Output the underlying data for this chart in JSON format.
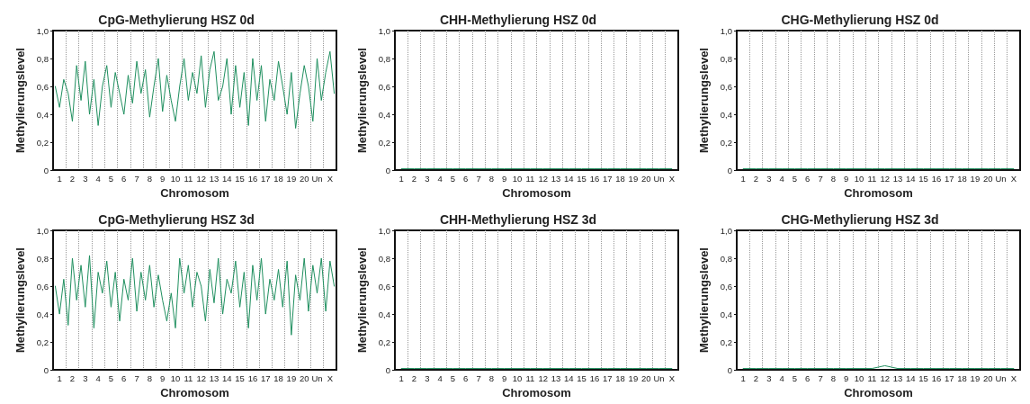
{
  "chart_data": [
    {
      "type": "line",
      "title": "CpG-Methylierung HSZ 0d",
      "xlabel": "Chromosom",
      "ylabel": "Methylierungslevel",
      "grid": "x",
      "marker": "none",
      "xlim": [
        0,
        22
      ],
      "ylim": [
        0,
        1
      ],
      "yticks": [
        {
          "value": 0,
          "label": "0"
        },
        {
          "value": 0.2,
          "label": "0,2"
        },
        {
          "value": 0.4,
          "label": "0,4"
        },
        {
          "value": 0.6,
          "label": "0,6"
        },
        {
          "value": 0.8,
          "label": "0,8"
        },
        {
          "value": 1,
          "label": "1,0"
        }
      ],
      "xticks": [
        {
          "value": 0.5,
          "label": "1"
        },
        {
          "value": 1.5,
          "label": "2"
        },
        {
          "value": 2.5,
          "label": "3"
        },
        {
          "value": 3.5,
          "label": "4"
        },
        {
          "value": 4.5,
          "label": "5"
        },
        {
          "value": 5.5,
          "label": "6"
        },
        {
          "value": 6.5,
          "label": "7"
        },
        {
          "value": 7.5,
          "label": "8"
        },
        {
          "value": 8.5,
          "label": "9"
        },
        {
          "value": 9.5,
          "label": "10"
        },
        {
          "value": 10.5,
          "label": "11"
        },
        {
          "value": 11.5,
          "label": "12"
        },
        {
          "value": 12.5,
          "label": "13"
        },
        {
          "value": 13.5,
          "label": "14"
        },
        {
          "value": 14.5,
          "label": "15"
        },
        {
          "value": 15.5,
          "label": "16"
        },
        {
          "value": 16.5,
          "label": "17"
        },
        {
          "value": 17.5,
          "label": "18"
        },
        {
          "value": 18.5,
          "label": "19"
        },
        {
          "value": 19.5,
          "label": "20"
        },
        {
          "value": 20.5,
          "label": "Un"
        },
        {
          "value": 21.5,
          "label": "X"
        },
        {
          "value": 1,
          "label": null
        },
        {
          "value": 2,
          "label": null
        },
        {
          "value": 3,
          "label": null
        },
        {
          "value": 4,
          "label": null
        },
        {
          "value": 5,
          "label": null
        },
        {
          "value": 6,
          "label": null
        },
        {
          "value": 7,
          "label": null
        },
        {
          "value": 8,
          "label": null
        },
        {
          "value": 9,
          "label": null
        },
        {
          "value": 10,
          "label": null
        },
        {
          "value": 11,
          "label": null
        },
        {
          "value": 12,
          "label": null
        },
        {
          "value": 13,
          "label": null
        },
        {
          "value": 14,
          "label": null
        },
        {
          "value": 15,
          "label": null
        },
        {
          "value": 16,
          "label": null
        },
        {
          "value": 17,
          "label": null
        },
        {
          "value": 18,
          "label": null
        },
        {
          "value": 19,
          "label": null
        },
        {
          "value": 20,
          "label": null
        },
        {
          "value": 21,
          "label": null
        }
      ],
      "x": [
        0.17,
        0.5,
        0.83,
        1.17,
        1.5,
        1.83,
        2.17,
        2.5,
        2.83,
        3.17,
        3.5,
        3.83,
        4.17,
        4.5,
        4.83,
        5.17,
        5.5,
        5.83,
        6.17,
        6.5,
        6.83,
        7.17,
        7.5,
        7.83,
        8.17,
        8.5,
        8.83,
        9.17,
        9.5,
        9.83,
        10.17,
        10.5,
        10.83,
        11.17,
        11.5,
        11.83,
        12.17,
        12.5,
        12.83,
        13.17,
        13.5,
        13.83,
        14.17,
        14.5,
        14.83,
        15.17,
        15.5,
        15.83,
        16.17,
        16.5,
        16.83,
        17.17,
        17.5,
        17.83,
        18.17,
        18.5,
        18.83,
        19.17,
        19.5,
        19.83,
        20.17,
        20.5,
        20.83,
        21.17,
        21.5,
        21.83
      ],
      "series": [
        {
          "color": "#1f8f5f",
          "values": [
            0.6,
            0.45,
            0.65,
            0.55,
            0.35,
            0.75,
            0.5,
            0.78,
            0.4,
            0.65,
            0.32,
            0.6,
            0.75,
            0.45,
            0.7,
            0.55,
            0.4,
            0.68,
            0.48,
            0.78,
            0.55,
            0.72,
            0.38,
            0.6,
            0.8,
            0.42,
            0.68,
            0.5,
            0.35,
            0.6,
            0.8,
            0.5,
            0.7,
            0.55,
            0.82,
            0.45,
            0.72,
            0.85,
            0.5,
            0.6,
            0.8,
            0.4,
            0.75,
            0.45,
            0.7,
            0.32,
            0.8,
            0.5,
            0.75,
            0.35,
            0.65,
            0.5,
            0.78,
            0.6,
            0.4,
            0.7,
            0.3,
            0.55,
            0.75,
            0.6,
            0.35,
            0.8,
            0.5,
            0.7,
            0.85,
            0.55
          ]
        }
      ]
    },
    {
      "type": "line",
      "title": "CHH-Methylierung HSZ 0d",
      "xlabel": "Chromosom",
      "ylabel": "Methylierungslevel",
      "grid": "x",
      "marker": "none",
      "xlim": [
        0,
        22
      ],
      "ylim": [
        0,
        1
      ],
      "yticks": [
        {
          "value": 0,
          "label": "0"
        },
        {
          "value": 0.2,
          "label": "0,2"
        },
        {
          "value": 0.4,
          "label": "0,4"
        },
        {
          "value": 0.6,
          "label": "0,6"
        },
        {
          "value": 0.8,
          "label": "0,8"
        },
        {
          "value": 1,
          "label": "1,0"
        }
      ],
      "xticks": [
        {
          "value": 0.5,
          "label": "1"
        },
        {
          "value": 1.5,
          "label": "2"
        },
        {
          "value": 2.5,
          "label": "3"
        },
        {
          "value": 3.5,
          "label": "4"
        },
        {
          "value": 4.5,
          "label": "5"
        },
        {
          "value": 5.5,
          "label": "6"
        },
        {
          "value": 6.5,
          "label": "7"
        },
        {
          "value": 7.5,
          "label": "8"
        },
        {
          "value": 8.5,
          "label": "9"
        },
        {
          "value": 9.5,
          "label": "10"
        },
        {
          "value": 10.5,
          "label": "11"
        },
        {
          "value": 11.5,
          "label": "12"
        },
        {
          "value": 12.5,
          "label": "13"
        },
        {
          "value": 13.5,
          "label": "14"
        },
        {
          "value": 14.5,
          "label": "15"
        },
        {
          "value": 15.5,
          "label": "16"
        },
        {
          "value": 16.5,
          "label": "17"
        },
        {
          "value": 17.5,
          "label": "18"
        },
        {
          "value": 18.5,
          "label": "19"
        },
        {
          "value": 19.5,
          "label": "20"
        },
        {
          "value": 20.5,
          "label": "Un"
        },
        {
          "value": 21.5,
          "label": "X"
        },
        {
          "value": 1,
          "label": null
        },
        {
          "value": 2,
          "label": null
        },
        {
          "value": 3,
          "label": null
        },
        {
          "value": 4,
          "label": null
        },
        {
          "value": 5,
          "label": null
        },
        {
          "value": 6,
          "label": null
        },
        {
          "value": 7,
          "label": null
        },
        {
          "value": 8,
          "label": null
        },
        {
          "value": 9,
          "label": null
        },
        {
          "value": 10,
          "label": null
        },
        {
          "value": 11,
          "label": null
        },
        {
          "value": 12,
          "label": null
        },
        {
          "value": 13,
          "label": null
        },
        {
          "value": 14,
          "label": null
        },
        {
          "value": 15,
          "label": null
        },
        {
          "value": 16,
          "label": null
        },
        {
          "value": 17,
          "label": null
        },
        {
          "value": 18,
          "label": null
        },
        {
          "value": 19,
          "label": null
        },
        {
          "value": 20,
          "label": null
        },
        {
          "value": 21,
          "label": null
        }
      ],
      "x": [
        0.5,
        1.5,
        2.5,
        3.5,
        4.5,
        5.5,
        6.5,
        7.5,
        8.5,
        9.5,
        10.5,
        11.5,
        12.5,
        13.5,
        14.5,
        15.5,
        16.5,
        17.5,
        18.5,
        19.5,
        20.5,
        21.5
      ],
      "series": [
        {
          "color": "#1f8f5f",
          "values": [
            0.01,
            0.01,
            0.01,
            0.01,
            0.01,
            0.01,
            0.01,
            0.01,
            0.01,
            0.01,
            0.01,
            0.01,
            0.01,
            0.01,
            0.01,
            0.01,
            0.01,
            0.01,
            0.01,
            0.01,
            0.01,
            0.01
          ]
        }
      ]
    },
    {
      "type": "line",
      "title": "CHG-Methylierung HSZ 0d",
      "xlabel": "Chromosom",
      "ylabel": "Methylierungslevel",
      "grid": "x",
      "marker": "none",
      "xlim": [
        0,
        22
      ],
      "ylim": [
        0,
        1
      ],
      "yticks": [
        {
          "value": 0,
          "label": "0"
        },
        {
          "value": 0.2,
          "label": "0,2"
        },
        {
          "value": 0.4,
          "label": "0,4"
        },
        {
          "value": 0.6,
          "label": "0,6"
        },
        {
          "value": 0.8,
          "label": "0,8"
        },
        {
          "value": 1,
          "label": "1,0"
        }
      ],
      "xticks": [
        {
          "value": 0.5,
          "label": "1"
        },
        {
          "value": 1.5,
          "label": "2"
        },
        {
          "value": 2.5,
          "label": "3"
        },
        {
          "value": 3.5,
          "label": "4"
        },
        {
          "value": 4.5,
          "label": "5"
        },
        {
          "value": 5.5,
          "label": "6"
        },
        {
          "value": 6.5,
          "label": "7"
        },
        {
          "value": 7.5,
          "label": "8"
        },
        {
          "value": 8.5,
          "label": "9"
        },
        {
          "value": 9.5,
          "label": "10"
        },
        {
          "value": 10.5,
          "label": "11"
        },
        {
          "value": 11.5,
          "label": "12"
        },
        {
          "value": 12.5,
          "label": "13"
        },
        {
          "value": 13.5,
          "label": "14"
        },
        {
          "value": 14.5,
          "label": "15"
        },
        {
          "value": 15.5,
          "label": "16"
        },
        {
          "value": 16.5,
          "label": "17"
        },
        {
          "value": 17.5,
          "label": "18"
        },
        {
          "value": 18.5,
          "label": "19"
        },
        {
          "value": 19.5,
          "label": "20"
        },
        {
          "value": 20.5,
          "label": "Un"
        },
        {
          "value": 21.5,
          "label": "X"
        },
        {
          "value": 1,
          "label": null
        },
        {
          "value": 2,
          "label": null
        },
        {
          "value": 3,
          "label": null
        },
        {
          "value": 4,
          "label": null
        },
        {
          "value": 5,
          "label": null
        },
        {
          "value": 6,
          "label": null
        },
        {
          "value": 7,
          "label": null
        },
        {
          "value": 8,
          "label": null
        },
        {
          "value": 9,
          "label": null
        },
        {
          "value": 10,
          "label": null
        },
        {
          "value": 11,
          "label": null
        },
        {
          "value": 12,
          "label": null
        },
        {
          "value": 13,
          "label": null
        },
        {
          "value": 14,
          "label": null
        },
        {
          "value": 15,
          "label": null
        },
        {
          "value": 16,
          "label": null
        },
        {
          "value": 17,
          "label": null
        },
        {
          "value": 18,
          "label": null
        },
        {
          "value": 19,
          "label": null
        },
        {
          "value": 20,
          "label": null
        },
        {
          "value": 21,
          "label": null
        }
      ],
      "x": [
        0.5,
        1.5,
        2.5,
        3.5,
        4.5,
        5.5,
        6.5,
        7.5,
        8.5,
        9.5,
        10.5,
        11.5,
        12.5,
        13.5,
        14.5,
        15.5,
        16.5,
        17.5,
        18.5,
        19.5,
        20.5,
        21.5
      ],
      "series": [
        {
          "color": "#1f8f5f",
          "values": [
            0.01,
            0.01,
            0.01,
            0.01,
            0.01,
            0.01,
            0.01,
            0.01,
            0.01,
            0.01,
            0.01,
            0.01,
            0.01,
            0.01,
            0.01,
            0.01,
            0.01,
            0.01,
            0.01,
            0.01,
            0.01,
            0.01
          ]
        }
      ]
    },
    {
      "type": "line",
      "title": "CpG-Methylierung HSZ 3d",
      "xlabel": "Chromosom",
      "ylabel": "Methylierungslevel",
      "grid": "x",
      "marker": "none",
      "xlim": [
        0,
        22
      ],
      "ylim": [
        0,
        1
      ],
      "yticks": [
        {
          "value": 0,
          "label": "0"
        },
        {
          "value": 0.2,
          "label": "0,2"
        },
        {
          "value": 0.4,
          "label": "0,4"
        },
        {
          "value": 0.6,
          "label": "0,6"
        },
        {
          "value": 0.8,
          "label": "0,8"
        },
        {
          "value": 1,
          "label": "1,0"
        }
      ],
      "xticks": [
        {
          "value": 0.5,
          "label": "1"
        },
        {
          "value": 1.5,
          "label": "2"
        },
        {
          "value": 2.5,
          "label": "3"
        },
        {
          "value": 3.5,
          "label": "4"
        },
        {
          "value": 4.5,
          "label": "5"
        },
        {
          "value": 5.5,
          "label": "6"
        },
        {
          "value": 6.5,
          "label": "7"
        },
        {
          "value": 7.5,
          "label": "8"
        },
        {
          "value": 8.5,
          "label": "9"
        },
        {
          "value": 9.5,
          "label": "10"
        },
        {
          "value": 10.5,
          "label": "11"
        },
        {
          "value": 11.5,
          "label": "12"
        },
        {
          "value": 12.5,
          "label": "13"
        },
        {
          "value": 13.5,
          "label": "14"
        },
        {
          "value": 14.5,
          "label": "15"
        },
        {
          "value": 15.5,
          "label": "16"
        },
        {
          "value": 16.5,
          "label": "17"
        },
        {
          "value": 17.5,
          "label": "18"
        },
        {
          "value": 18.5,
          "label": "19"
        },
        {
          "value": 19.5,
          "label": "20"
        },
        {
          "value": 20.5,
          "label": "Un"
        },
        {
          "value": 21.5,
          "label": "X"
        },
        {
          "value": 1,
          "label": null
        },
        {
          "value": 2,
          "label": null
        },
        {
          "value": 3,
          "label": null
        },
        {
          "value": 4,
          "label": null
        },
        {
          "value": 5,
          "label": null
        },
        {
          "value": 6,
          "label": null
        },
        {
          "value": 7,
          "label": null
        },
        {
          "value": 8,
          "label": null
        },
        {
          "value": 9,
          "label": null
        },
        {
          "value": 10,
          "label": null
        },
        {
          "value": 11,
          "label": null
        },
        {
          "value": 12,
          "label": null
        },
        {
          "value": 13,
          "label": null
        },
        {
          "value": 14,
          "label": null
        },
        {
          "value": 15,
          "label": null
        },
        {
          "value": 16,
          "label": null
        },
        {
          "value": 17,
          "label": null
        },
        {
          "value": 18,
          "label": null
        },
        {
          "value": 19,
          "label": null
        },
        {
          "value": 20,
          "label": null
        },
        {
          "value": 21,
          "label": null
        }
      ],
      "x": [
        0.17,
        0.5,
        0.83,
        1.17,
        1.5,
        1.83,
        2.17,
        2.5,
        2.83,
        3.17,
        3.5,
        3.83,
        4.17,
        4.5,
        4.83,
        5.17,
        5.5,
        5.83,
        6.17,
        6.5,
        6.83,
        7.17,
        7.5,
        7.83,
        8.17,
        8.5,
        8.83,
        9.17,
        9.5,
        9.83,
        10.17,
        10.5,
        10.83,
        11.17,
        11.5,
        11.83,
        12.17,
        12.5,
        12.83,
        13.17,
        13.5,
        13.83,
        14.17,
        14.5,
        14.83,
        15.17,
        15.5,
        15.83,
        16.17,
        16.5,
        16.83,
        17.17,
        17.5,
        17.83,
        18.17,
        18.5,
        18.83,
        19.17,
        19.5,
        19.83,
        20.17,
        20.5,
        20.83,
        21.17,
        21.5,
        21.83
      ],
      "series": [
        {
          "color": "#1f8f5f",
          "values": [
            0.6,
            0.4,
            0.65,
            0.32,
            0.8,
            0.5,
            0.75,
            0.45,
            0.82,
            0.3,
            0.7,
            0.55,
            0.78,
            0.45,
            0.7,
            0.35,
            0.65,
            0.5,
            0.8,
            0.42,
            0.7,
            0.5,
            0.75,
            0.45,
            0.68,
            0.5,
            0.35,
            0.55,
            0.3,
            0.8,
            0.55,
            0.75,
            0.45,
            0.7,
            0.6,
            0.35,
            0.72,
            0.48,
            0.8,
            0.4,
            0.65,
            0.55,
            0.78,
            0.45,
            0.7,
            0.3,
            0.75,
            0.5,
            0.8,
            0.4,
            0.65,
            0.5,
            0.72,
            0.45,
            0.78,
            0.25,
            0.68,
            0.5,
            0.8,
            0.42,
            0.75,
            0.55,
            0.8,
            0.42,
            0.78,
            0.6
          ]
        }
      ]
    },
    {
      "type": "line",
      "title": "CHH-Methylierung HSZ 3d",
      "xlabel": "Chromosom",
      "ylabel": "Methylierungslevel",
      "grid": "x",
      "marker": "none",
      "xlim": [
        0,
        22
      ],
      "ylim": [
        0,
        1
      ],
      "yticks": [
        {
          "value": 0,
          "label": "0"
        },
        {
          "value": 0.2,
          "label": "0,2"
        },
        {
          "value": 0.4,
          "label": "0,4"
        },
        {
          "value": 0.6,
          "label": "0,6"
        },
        {
          "value": 0.8,
          "label": "0,8"
        },
        {
          "value": 1,
          "label": "1,0"
        }
      ],
      "xticks": [
        {
          "value": 0.5,
          "label": "1"
        },
        {
          "value": 1.5,
          "label": "2"
        },
        {
          "value": 2.5,
          "label": "3"
        },
        {
          "value": 3.5,
          "label": "4"
        },
        {
          "value": 4.5,
          "label": "5"
        },
        {
          "value": 5.5,
          "label": "6"
        },
        {
          "value": 6.5,
          "label": "7"
        },
        {
          "value": 7.5,
          "label": "8"
        },
        {
          "value": 8.5,
          "label": "9"
        },
        {
          "value": 9.5,
          "label": "10"
        },
        {
          "value": 10.5,
          "label": "11"
        },
        {
          "value": 11.5,
          "label": "12"
        },
        {
          "value": 12.5,
          "label": "13"
        },
        {
          "value": 13.5,
          "label": "14"
        },
        {
          "value": 14.5,
          "label": "15"
        },
        {
          "value": 15.5,
          "label": "16"
        },
        {
          "value": 16.5,
          "label": "17"
        },
        {
          "value": 17.5,
          "label": "18"
        },
        {
          "value": 18.5,
          "label": "19"
        },
        {
          "value": 19.5,
          "label": "20"
        },
        {
          "value": 20.5,
          "label": "Un"
        },
        {
          "value": 21.5,
          "label": "X"
        },
        {
          "value": 1,
          "label": null
        },
        {
          "value": 2,
          "label": null
        },
        {
          "value": 3,
          "label": null
        },
        {
          "value": 4,
          "label": null
        },
        {
          "value": 5,
          "label": null
        },
        {
          "value": 6,
          "label": null
        },
        {
          "value": 7,
          "label": null
        },
        {
          "value": 8,
          "label": null
        },
        {
          "value": 9,
          "label": null
        },
        {
          "value": 10,
          "label": null
        },
        {
          "value": 11,
          "label": null
        },
        {
          "value": 12,
          "label": null
        },
        {
          "value": 13,
          "label": null
        },
        {
          "value": 14,
          "label": null
        },
        {
          "value": 15,
          "label": null
        },
        {
          "value": 16,
          "label": null
        },
        {
          "value": 17,
          "label": null
        },
        {
          "value": 18,
          "label": null
        },
        {
          "value": 19,
          "label": null
        },
        {
          "value": 20,
          "label": null
        },
        {
          "value": 21,
          "label": null
        }
      ],
      "x": [
        0.5,
        1.5,
        2.5,
        3.5,
        4.5,
        5.5,
        6.5,
        7.5,
        8.5,
        9.5,
        10.5,
        11.5,
        12.5,
        13.5,
        14.5,
        15.5,
        16.5,
        17.5,
        18.5,
        19.5,
        20.5,
        21.5
      ],
      "series": [
        {
          "color": "#1f8f5f",
          "values": [
            0.01,
            0.01,
            0.01,
            0.01,
            0.01,
            0.01,
            0.01,
            0.01,
            0.01,
            0.01,
            0.01,
            0.01,
            0.01,
            0.01,
            0.01,
            0.01,
            0.01,
            0.01,
            0.01,
            0.01,
            0.01,
            0.01
          ]
        }
      ]
    },
    {
      "type": "line",
      "title": "CHG-Methylierung HSZ 3d",
      "xlabel": "Chromosom",
      "ylabel": "Methylierungslevel",
      "grid": "x",
      "marker": "none",
      "xlim": [
        0,
        22
      ],
      "ylim": [
        0,
        1
      ],
      "yticks": [
        {
          "value": 0,
          "label": "0"
        },
        {
          "value": 0.2,
          "label": "0,2"
        },
        {
          "value": 0.4,
          "label": "0,4"
        },
        {
          "value": 0.6,
          "label": "0,6"
        },
        {
          "value": 0.8,
          "label": "0,8"
        },
        {
          "value": 1,
          "label": "1,0"
        }
      ],
      "xticks": [
        {
          "value": 0.5,
          "label": "1"
        },
        {
          "value": 1.5,
          "label": "2"
        },
        {
          "value": 2.5,
          "label": "3"
        },
        {
          "value": 3.5,
          "label": "4"
        },
        {
          "value": 4.5,
          "label": "5"
        },
        {
          "value": 5.5,
          "label": "6"
        },
        {
          "value": 6.5,
          "label": "7"
        },
        {
          "value": 7.5,
          "label": "8"
        },
        {
          "value": 8.5,
          "label": "9"
        },
        {
          "value": 9.5,
          "label": "10"
        },
        {
          "value": 10.5,
          "label": "11"
        },
        {
          "value": 11.5,
          "label": "12"
        },
        {
          "value": 12.5,
          "label": "13"
        },
        {
          "value": 13.5,
          "label": "14"
        },
        {
          "value": 14.5,
          "label": "15"
        },
        {
          "value": 15.5,
          "label": "16"
        },
        {
          "value": 16.5,
          "label": "17"
        },
        {
          "value": 17.5,
          "label": "18"
        },
        {
          "value": 18.5,
          "label": "19"
        },
        {
          "value": 19.5,
          "label": "20"
        },
        {
          "value": 20.5,
          "label": "Un"
        },
        {
          "value": 21.5,
          "label": "X"
        },
        {
          "value": 1,
          "label": null
        },
        {
          "value": 2,
          "label": null
        },
        {
          "value": 3,
          "label": null
        },
        {
          "value": 4,
          "label": null
        },
        {
          "value": 5,
          "label": null
        },
        {
          "value": 6,
          "label": null
        },
        {
          "value": 7,
          "label": null
        },
        {
          "value": 8,
          "label": null
        },
        {
          "value": 9,
          "label": null
        },
        {
          "value": 10,
          "label": null
        },
        {
          "value": 11,
          "label": null
        },
        {
          "value": 12,
          "label": null
        },
        {
          "value": 13,
          "label": null
        },
        {
          "value": 14,
          "label": null
        },
        {
          "value": 15,
          "label": null
        },
        {
          "value": 16,
          "label": null
        },
        {
          "value": 17,
          "label": null
        },
        {
          "value": 18,
          "label": null
        },
        {
          "value": 19,
          "label": null
        },
        {
          "value": 20,
          "label": null
        },
        {
          "value": 21,
          "label": null
        }
      ],
      "x": [
        0.5,
        1.5,
        2.5,
        3.5,
        4.5,
        5.5,
        6.5,
        7.5,
        8.5,
        9.5,
        10.5,
        11.5,
        12.5,
        13.5,
        14.5,
        15.5,
        16.5,
        17.5,
        18.5,
        19.5,
        20.5,
        21.5
      ],
      "series": [
        {
          "color": "#1f8f5f",
          "values": [
            0.01,
            0.01,
            0.01,
            0.01,
            0.01,
            0.01,
            0.01,
            0.01,
            0.01,
            0.01,
            0.01,
            0.03,
            0.01,
            0.01,
            0.01,
            0.01,
            0.01,
            0.01,
            0.01,
            0.01,
            0.01,
            0.01
          ]
        }
      ]
    }
  ]
}
